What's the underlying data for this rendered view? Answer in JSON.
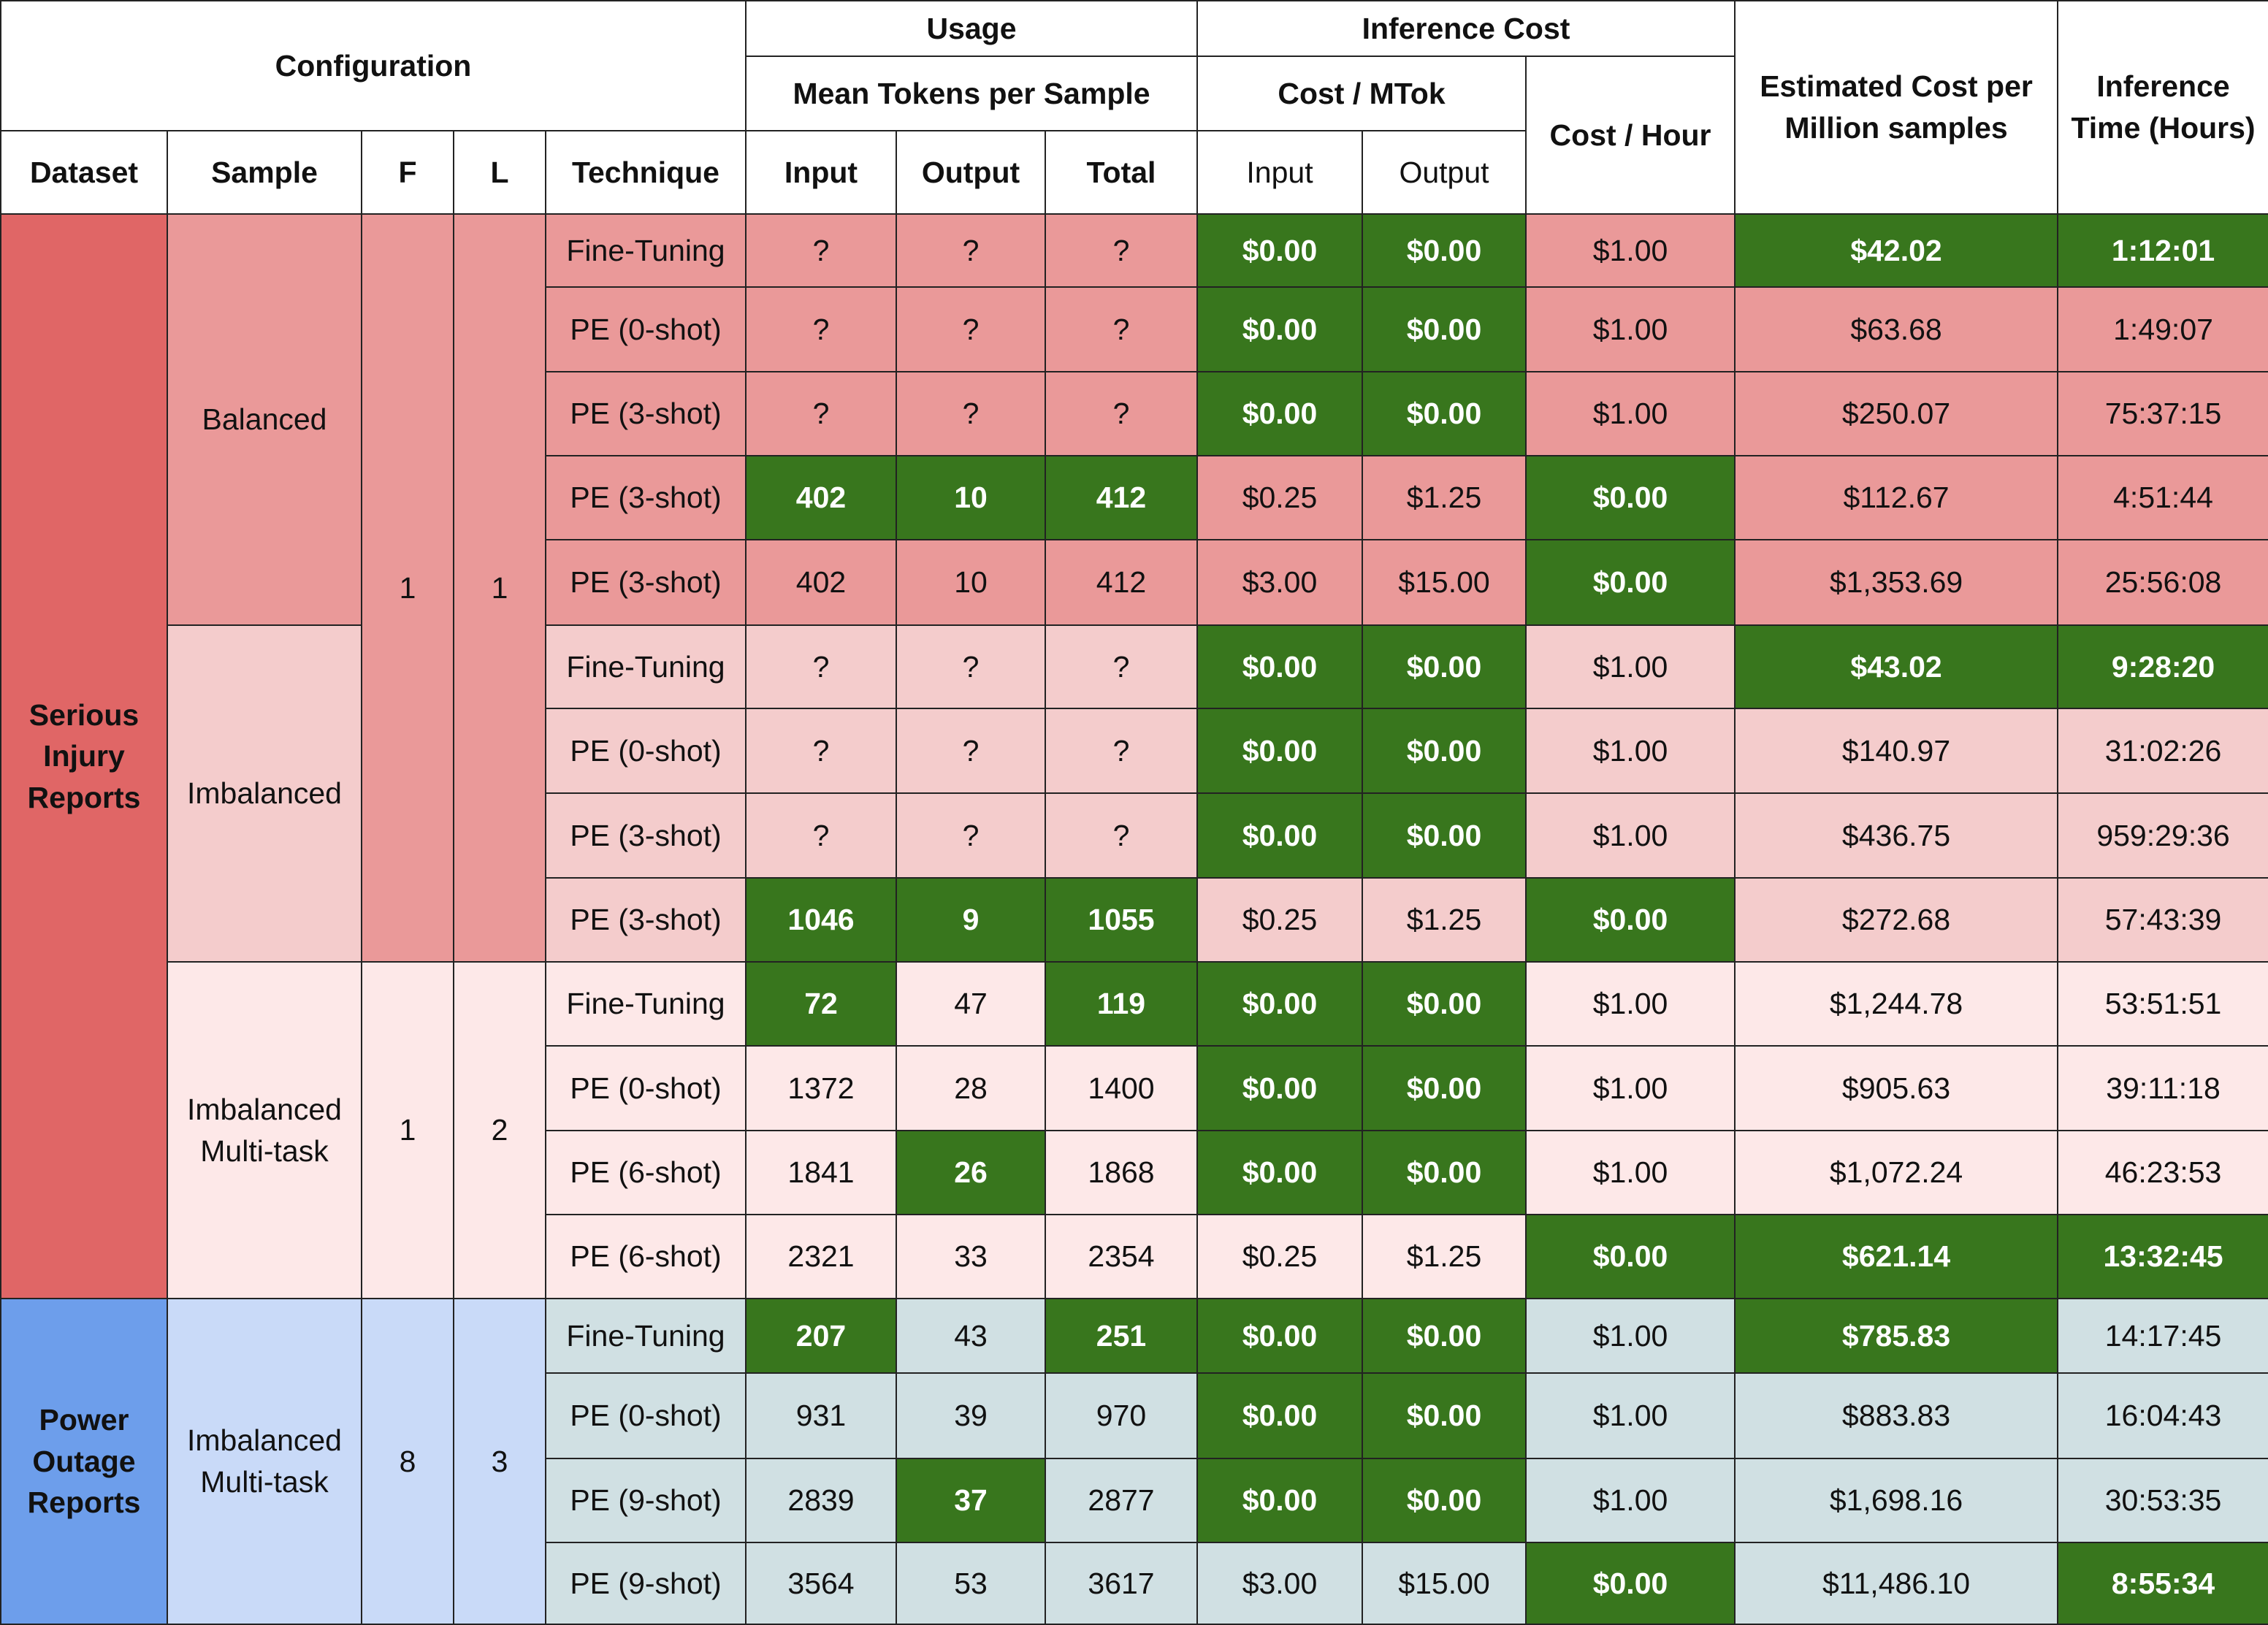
{
  "colors": {
    "highlight": "#38761d",
    "serious_dataset": "#e06666",
    "balanced": "#ea9999",
    "imbalanced": "#f4cccc",
    "serious_multitask": "#fde8e8",
    "power_dataset": "#6d9eeb",
    "power_config": "#c9daf8",
    "power_data": "#d0e0e3"
  },
  "headers": {
    "configuration": "Configuration",
    "usage": "Usage",
    "inference_cost": "Inference Cost",
    "mean_tokens": "Mean Tokens per Sample",
    "cost_mtok": "Cost / MTok",
    "cost_hour": "Cost / Hour",
    "est_cost_line1": "Estimated Cost per",
    "est_cost_line2": "Million samples",
    "inf_time_line1": "Inference",
    "inf_time_line2": "Time (Hours)",
    "dataset": "Dataset",
    "sample": "Sample",
    "f": "F",
    "l": "L",
    "technique": "Technique",
    "input": "Input",
    "output": "Output",
    "total": "Total",
    "mtok_input": "Input",
    "mtok_output": "Output"
  },
  "groups": {
    "serious": {
      "line1": "Serious",
      "line2": "Injury",
      "line3": "Reports"
    },
    "power": {
      "line1": "Power",
      "line2": "Outage",
      "line3": "Reports"
    },
    "balanced": {
      "sample": "Balanced"
    },
    "imbalanced": {
      "sample": "Imbalanced",
      "f": "1",
      "l": "1"
    },
    "serious_multitask": {
      "sample_line1": "Imbalanced",
      "sample_line2": "Multi-task",
      "f": "1",
      "l": "2"
    },
    "power_multitask": {
      "sample_line1": "Imbalanced",
      "sample_line2": "Multi-task",
      "f": "8",
      "l": "3"
    }
  },
  "rows": [
    {
      "technique": "Fine-Tuning",
      "input": "?",
      "output": "?",
      "total": "?",
      "mtok_in": "$0.00",
      "mtok_out": "$0.00",
      "cost_hour": "$1.00",
      "est_cost": "$42.02",
      "time": "1:12:01"
    },
    {
      "technique": "PE (0-shot)",
      "input": "?",
      "output": "?",
      "total": "?",
      "mtok_in": "$0.00",
      "mtok_out": "$0.00",
      "cost_hour": "$1.00",
      "est_cost": "$63.68",
      "time": "1:49:07"
    },
    {
      "technique": "PE (3-shot)",
      "input": "?",
      "output": "?",
      "total": "?",
      "mtok_in": "$0.00",
      "mtok_out": "$0.00",
      "cost_hour": "$1.00",
      "est_cost": "$250.07",
      "time": "75:37:15"
    },
    {
      "technique": "PE (3-shot)",
      "input": "402",
      "output": "10",
      "total": "412",
      "mtok_in": "$0.25",
      "mtok_out": "$1.25",
      "cost_hour": "$0.00",
      "est_cost": "$112.67",
      "time": "4:51:44"
    },
    {
      "technique": "PE (3-shot)",
      "input": "402",
      "output": "10",
      "total": "412",
      "mtok_in": "$3.00",
      "mtok_out": "$15.00",
      "cost_hour": "$0.00",
      "est_cost": "$1,353.69",
      "time": "25:56:08"
    },
    {
      "technique": "Fine-Tuning",
      "input": "?",
      "output": "?",
      "total": "?",
      "mtok_in": "$0.00",
      "mtok_out": "$0.00",
      "cost_hour": "$1.00",
      "est_cost": "$43.02",
      "time": "9:28:20"
    },
    {
      "technique": "PE (0-shot)",
      "input": "?",
      "output": "?",
      "total": "?",
      "mtok_in": "$0.00",
      "mtok_out": "$0.00",
      "cost_hour": "$1.00",
      "est_cost": "$140.97",
      "time": "31:02:26"
    },
    {
      "technique": "PE (3-shot)",
      "input": "?",
      "output": "?",
      "total": "?",
      "mtok_in": "$0.00",
      "mtok_out": "$0.00",
      "cost_hour": "$1.00",
      "est_cost": "$436.75",
      "time": "959:29:36"
    },
    {
      "technique": "PE (3-shot)",
      "input": "1046",
      "output": "9",
      "total": "1055",
      "mtok_in": "$0.25",
      "mtok_out": "$1.25",
      "cost_hour": "$0.00",
      "est_cost": "$272.68",
      "time": "57:43:39"
    },
    {
      "technique": "Fine-Tuning",
      "input": "72",
      "output": "47",
      "total": "119",
      "mtok_in": "$0.00",
      "mtok_out": "$0.00",
      "cost_hour": "$1.00",
      "est_cost": "$1,244.78",
      "time": "53:51:51"
    },
    {
      "technique": "PE (0-shot)",
      "input": "1372",
      "output": "28",
      "total": "1400",
      "mtok_in": "$0.00",
      "mtok_out": "$0.00",
      "cost_hour": "$1.00",
      "est_cost": "$905.63",
      "time": "39:11:18"
    },
    {
      "technique": "PE (6-shot)",
      "input": "1841",
      "output": "26",
      "total": "1868",
      "mtok_in": "$0.00",
      "mtok_out": "$0.00",
      "cost_hour": "$1.00",
      "est_cost": "$1,072.24",
      "time": "46:23:53"
    },
    {
      "technique": "PE (6-shot)",
      "input": "2321",
      "output": "33",
      "total": "2354",
      "mtok_in": "$0.25",
      "mtok_out": "$1.25",
      "cost_hour": "$0.00",
      "est_cost": "$621.14",
      "time": "13:32:45"
    },
    {
      "technique": "Fine-Tuning",
      "input": "207",
      "output": "43",
      "total": "251",
      "mtok_in": "$0.00",
      "mtok_out": "$0.00",
      "cost_hour": "$1.00",
      "est_cost": "$785.83",
      "time": "14:17:45"
    },
    {
      "technique": "PE (0-shot)",
      "input": "931",
      "output": "39",
      "total": "970",
      "mtok_in": "$0.00",
      "mtok_out": "$0.00",
      "cost_hour": "$1.00",
      "est_cost": "$883.83",
      "time": "16:04:43"
    },
    {
      "technique": "PE (9-shot)",
      "input": "2839",
      "output": "37",
      "total": "2877",
      "mtok_in": "$0.00",
      "mtok_out": "$0.00",
      "cost_hour": "$1.00",
      "est_cost": "$1,698.16",
      "time": "30:53:35"
    },
    {
      "technique": "PE (9-shot)",
      "input": "3564",
      "output": "53",
      "total": "3617",
      "mtok_in": "$3.00",
      "mtok_out": "$15.00",
      "cost_hour": "$0.00",
      "est_cost": "$11,486.10",
      "time": "8:55:34"
    }
  ]
}
